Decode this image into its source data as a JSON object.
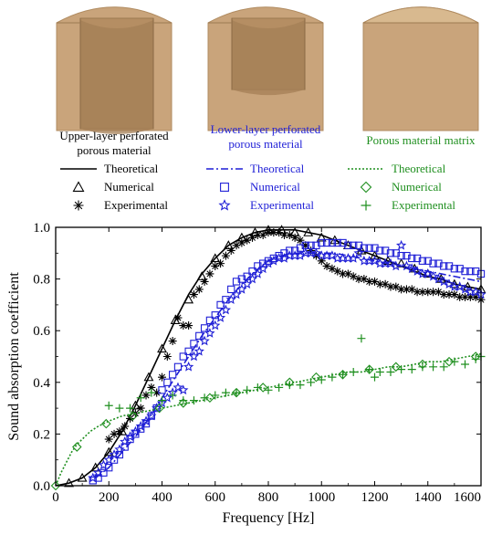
{
  "figure": {
    "samples": [
      {
        "caption_lines": [
          "Upper-layer perforated",
          "porous material"
        ],
        "color": "#000000",
        "shape": "upper-perforated"
      },
      {
        "caption_lines": [
          "Lower-layer perforated",
          "porous material"
        ],
        "color": "#1f1fd6",
        "shape": "lower-perforated"
      },
      {
        "caption_lines": [
          "Porous material matrix"
        ],
        "color": "#1f8f1f",
        "shape": "solid"
      }
    ],
    "material_color": "#c9a47b"
  },
  "chart_data": {
    "type": "line",
    "title": "",
    "xlabel": "Frequency [Hz]",
    "ylabel": "Sound absorption coefficient",
    "xlim": [
      0,
      1600
    ],
    "ylim": [
      0,
      1.0
    ],
    "xticks": [
      0,
      200,
      400,
      600,
      800,
      1000,
      1200,
      1400,
      1600
    ],
    "xtick_labels": [
      "0",
      "200",
      "400",
      "600",
      "800",
      "1000",
      "1200",
      "1400",
      "1600"
    ],
    "yticks": [
      0,
      0.2,
      0.4,
      0.6,
      0.8,
      1.0
    ],
    "ytick_labels": [
      "0.0",
      "0.2",
      "0.4",
      "0.6",
      "0.8",
      "1.0"
    ],
    "grid": false,
    "legend_position": "top",
    "series": [
      {
        "name": "Theoretical",
        "group": 0,
        "color": "#000000",
        "style": "solid",
        "marker": "none",
        "x": [
          0,
          50,
          100,
          150,
          200,
          250,
          300,
          350,
          400,
          450,
          500,
          550,
          600,
          650,
          700,
          750,
          800,
          850,
          900,
          950,
          1000,
          1050,
          1100,
          1150,
          1200,
          1250,
          1300,
          1350,
          1400,
          1450,
          1500,
          1550,
          1600
        ],
        "y": [
          0,
          0.01,
          0.03,
          0.07,
          0.13,
          0.21,
          0.31,
          0.42,
          0.53,
          0.64,
          0.74,
          0.82,
          0.88,
          0.93,
          0.96,
          0.98,
          0.99,
          0.99,
          0.99,
          0.98,
          0.97,
          0.95,
          0.93,
          0.91,
          0.89,
          0.87,
          0.85,
          0.83,
          0.81,
          0.8,
          0.78,
          0.77,
          0.76
        ]
      },
      {
        "name": "Numerical",
        "group": 0,
        "color": "#000000",
        "style": "none",
        "marker": "triangle",
        "x": [
          50,
          100,
          150,
          200,
          250,
          300,
          350,
          400,
          450,
          500,
          550,
          600,
          650,
          700,
          750,
          800,
          850,
          900,
          950,
          1000,
          1050,
          1100,
          1150,
          1200,
          1250,
          1300,
          1350,
          1400,
          1450,
          1500,
          1550,
          1600
        ],
        "y": [
          0.01,
          0.03,
          0.07,
          0.13,
          0.21,
          0.31,
          0.42,
          0.53,
          0.64,
          0.72,
          0.81,
          0.88,
          0.93,
          0.96,
          0.98,
          0.99,
          0.99,
          0.98,
          0.98,
          0.96,
          0.95,
          0.93,
          0.91,
          0.89,
          0.87,
          0.86,
          0.84,
          0.82,
          0.8,
          0.78,
          0.77,
          0.76
        ]
      },
      {
        "name": "Experimental",
        "group": 0,
        "color": "#000000",
        "style": "none",
        "marker": "asterisk",
        "x": [
          200,
          220,
          240,
          260,
          280,
          300,
          320,
          340,
          360,
          380,
          400,
          420,
          440,
          460,
          480,
          500,
          520,
          540,
          560,
          580,
          600,
          620,
          640,
          660,
          680,
          700,
          720,
          740,
          760,
          780,
          800,
          820,
          840,
          860,
          880,
          900,
          920,
          940,
          960,
          980,
          1000,
          1020,
          1040,
          1060,
          1080,
          1100,
          1120,
          1140,
          1160,
          1180,
          1200,
          1220,
          1240,
          1260,
          1280,
          1300,
          1320,
          1340,
          1360,
          1380,
          1400,
          1420,
          1440,
          1460,
          1480,
          1500,
          1520,
          1540,
          1560,
          1580,
          1600
        ],
        "y": [
          0.18,
          0.2,
          0.21,
          0.23,
          0.26,
          0.28,
          0.3,
          0.35,
          0.38,
          0.36,
          0.42,
          0.5,
          0.56,
          0.65,
          0.62,
          0.62,
          0.74,
          0.76,
          0.79,
          0.82,
          0.85,
          0.86,
          0.89,
          0.91,
          0.93,
          0.94,
          0.95,
          0.96,
          0.97,
          0.97,
          0.98,
          0.98,
          0.98,
          0.97,
          0.97,
          0.96,
          0.95,
          0.93,
          0.91,
          0.89,
          0.87,
          0.85,
          0.84,
          0.83,
          0.82,
          0.82,
          0.81,
          0.8,
          0.8,
          0.79,
          0.79,
          0.78,
          0.78,
          0.77,
          0.77,
          0.76,
          0.76,
          0.76,
          0.75,
          0.75,
          0.75,
          0.75,
          0.75,
          0.74,
          0.74,
          0.74,
          0.73,
          0.73,
          0.73,
          0.73,
          0.72
        ]
      },
      {
        "name": "Theoretical",
        "group": 1,
        "color": "#1f1fd6",
        "style": "dashdot",
        "marker": "none",
        "x": [
          150,
          200,
          250,
          300,
          350,
          400,
          450,
          500,
          550,
          600,
          650,
          700,
          750,
          800,
          850,
          900,
          950,
          1000,
          1050,
          1100,
          1150,
          1200,
          1250,
          1300,
          1350,
          1400,
          1450,
          1500,
          1550,
          1600
        ],
        "y": [
          0.03,
          0.07,
          0.13,
          0.19,
          0.26,
          0.34,
          0.42,
          0.5,
          0.58,
          0.65,
          0.72,
          0.78,
          0.83,
          0.87,
          0.89,
          0.9,
          0.9,
          0.9,
          0.9,
          0.89,
          0.88,
          0.87,
          0.86,
          0.85,
          0.84,
          0.83,
          0.82,
          0.81,
          0.8,
          0.79
        ]
      },
      {
        "name": "Numerical",
        "group": 1,
        "color": "#1f1fd6",
        "style": "none",
        "marker": "square",
        "x": [
          140,
          160,
          180,
          200,
          220,
          240,
          260,
          280,
          300,
          320,
          340,
          360,
          380,
          400,
          420,
          440,
          460,
          480,
          500,
          520,
          540,
          560,
          580,
          600,
          620,
          640,
          660,
          680,
          700,
          720,
          740,
          760,
          780,
          800,
          820,
          840,
          860,
          880,
          900,
          920,
          940,
          960,
          980,
          1000,
          1020,
          1040,
          1060,
          1080,
          1100,
          1120,
          1140,
          1160,
          1180,
          1200,
          1220,
          1240,
          1260,
          1280,
          1300,
          1320,
          1340,
          1360,
          1380,
          1400,
          1420,
          1440,
          1460,
          1480,
          1500,
          1520,
          1540,
          1560,
          1580,
          1600
        ],
        "y": [
          0.02,
          0.03,
          0.05,
          0.07,
          0.1,
          0.12,
          0.15,
          0.18,
          0.2,
          0.22,
          0.24,
          0.27,
          0.3,
          0.37,
          0.4,
          0.43,
          0.46,
          0.5,
          0.52,
          0.55,
          0.58,
          0.61,
          0.64,
          0.66,
          0.7,
          0.72,
          0.76,
          0.79,
          0.8,
          0.81,
          0.83,
          0.85,
          0.86,
          0.87,
          0.88,
          0.89,
          0.9,
          0.91,
          0.91,
          0.92,
          0.93,
          0.93,
          0.93,
          0.94,
          0.94,
          0.94,
          0.94,
          0.94,
          0.93,
          0.93,
          0.93,
          0.92,
          0.92,
          0.92,
          0.91,
          0.91,
          0.9,
          0.9,
          0.89,
          0.89,
          0.88,
          0.88,
          0.87,
          0.87,
          0.86,
          0.86,
          0.85,
          0.85,
          0.84,
          0.84,
          0.83,
          0.83,
          0.83,
          0.82
        ]
      },
      {
        "name": "Experimental",
        "group": 1,
        "color": "#1f1fd6",
        "style": "none",
        "marker": "star",
        "x": [
          140,
          160,
          180,
          200,
          220,
          240,
          260,
          280,
          300,
          320,
          340,
          360,
          380,
          400,
          420,
          440,
          460,
          480,
          500,
          520,
          540,
          560,
          580,
          600,
          620,
          640,
          660,
          680,
          700,
          720,
          740,
          760,
          780,
          800,
          820,
          840,
          860,
          880,
          900,
          920,
          940,
          960,
          980,
          1000,
          1020,
          1040,
          1060,
          1080,
          1100,
          1120,
          1140,
          1160,
          1180,
          1200,
          1220,
          1240,
          1260,
          1280,
          1300,
          1320,
          1340,
          1360,
          1380,
          1400,
          1420,
          1440,
          1460,
          1480,
          1500,
          1520,
          1540,
          1560,
          1580,
          1600
        ],
        "y": [
          0.03,
          0.05,
          0.08,
          0.1,
          0.12,
          0.14,
          0.17,
          0.19,
          0.21,
          0.23,
          0.25,
          0.27,
          0.3,
          0.32,
          0.34,
          0.36,
          0.38,
          0.37,
          0.46,
          0.5,
          0.52,
          0.56,
          0.59,
          0.62,
          0.65,
          0.68,
          0.72,
          0.74,
          0.76,
          0.78,
          0.8,
          0.82,
          0.84,
          0.86,
          0.87,
          0.88,
          0.88,
          0.89,
          0.89,
          0.89,
          0.9,
          0.9,
          0.9,
          0.89,
          0.89,
          0.89,
          0.88,
          0.88,
          0.88,
          0.88,
          0.9,
          0.87,
          0.87,
          0.87,
          0.86,
          0.86,
          0.86,
          0.85,
          0.93,
          0.85,
          0.84,
          0.83,
          0.82,
          0.82,
          0.81,
          0.8,
          0.79,
          0.78,
          0.77,
          0.77,
          0.76,
          0.75,
          0.75,
          0.74
        ]
      },
      {
        "name": "Theoretical",
        "group": 2,
        "color": "#1f8f1f",
        "style": "dotted",
        "marker": "none",
        "x": [
          0,
          20,
          40,
          60,
          80,
          100,
          130,
          160,
          200,
          250,
          300,
          350,
          400,
          450,
          500,
          550,
          600,
          650,
          700,
          750,
          800,
          850,
          900,
          950,
          1000,
          1050,
          1100,
          1150,
          1200,
          1250,
          1300,
          1350,
          1400,
          1450,
          1500,
          1550,
          1600
        ],
        "y": [
          0,
          0.05,
          0.09,
          0.13,
          0.16,
          0.18,
          0.21,
          0.23,
          0.25,
          0.27,
          0.28,
          0.29,
          0.3,
          0.31,
          0.32,
          0.33,
          0.34,
          0.35,
          0.36,
          0.37,
          0.38,
          0.39,
          0.4,
          0.41,
          0.42,
          0.43,
          0.44,
          0.44,
          0.45,
          0.46,
          0.46,
          0.47,
          0.48,
          0.48,
          0.49,
          0.5,
          0.51
        ]
      },
      {
        "name": "Numerical",
        "group": 2,
        "color": "#1f8f1f",
        "style": "none",
        "marker": "diamond",
        "x": [
          0,
          80,
          190,
          290,
          390,
          480,
          580,
          680,
          780,
          880,
          980,
          1080,
          1180,
          1280,
          1380,
          1480,
          1580
        ],
        "y": [
          0,
          0.15,
          0.24,
          0.27,
          0.3,
          0.32,
          0.34,
          0.36,
          0.38,
          0.4,
          0.42,
          0.43,
          0.45,
          0.46,
          0.47,
          0.48,
          0.5
        ]
      },
      {
        "name": "Experimental",
        "group": 2,
        "color": "#1f8f1f",
        "style": "none",
        "marker": "plus",
        "x": [
          200,
          240,
          280,
          320,
          360,
          400,
          440,
          480,
          520,
          560,
          600,
          640,
          680,
          720,
          760,
          800,
          840,
          880,
          920,
          960,
          1000,
          1040,
          1080,
          1120,
          1150,
          1180,
          1200,
          1220,
          1260,
          1300,
          1340,
          1380,
          1420,
          1460,
          1500,
          1540,
          1580,
          1600
        ],
        "y": [
          0.31,
          0.3,
          0.3,
          0.34,
          0.36,
          0.33,
          0.35,
          0.33,
          0.33,
          0.34,
          0.35,
          0.36,
          0.36,
          0.37,
          0.38,
          0.37,
          0.38,
          0.39,
          0.39,
          0.4,
          0.41,
          0.42,
          0.43,
          0.44,
          0.57,
          0.45,
          0.42,
          0.44,
          0.44,
          0.45,
          0.45,
          0.46,
          0.46,
          0.46,
          0.48,
          0.47,
          0.49,
          0.5
        ]
      }
    ]
  }
}
